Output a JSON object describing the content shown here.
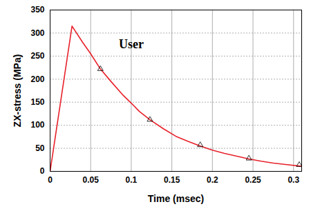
{
  "chart_data": {
    "type": "line",
    "x_label": "Time (msec)",
    "y_label": "ZX-stress (MPa)",
    "xlim": [
      0,
      0.31
    ],
    "xticks": [
      0,
      0.05,
      0.1,
      0.15,
      0.2,
      0.25,
      0.3
    ],
    "ylim": [
      0,
      350
    ],
    "yticks": [
      0,
      50,
      100,
      150,
      200,
      250,
      300,
      350
    ],
    "grid": true,
    "series": [
      {
        "type": "line",
        "color": "#e8202a",
        "line_style": "solid",
        "x": [
          0,
          0.027,
          0.04,
          0.05,
          0.062,
          0.075,
          0.09,
          0.1,
          0.11,
          0.123,
          0.14,
          0.155,
          0.17,
          0.185,
          0.2,
          0.215,
          0.23,
          0.245,
          0.26,
          0.275,
          0.29,
          0.31
        ],
        "values": [
          0,
          315,
          280,
          255,
          222,
          195,
          165,
          148,
          130,
          112,
          92,
          76,
          65,
          55,
          46,
          39,
          33,
          27,
          22,
          18,
          15,
          11
        ]
      },
      {
        "type": "scatter",
        "color": "#000000",
        "marker": "triangle",
        "x": [
          0.062,
          0.123,
          0.185,
          0.245,
          0.307
        ],
        "values": [
          222,
          112,
          57,
          28,
          14
        ]
      }
    ],
    "annotations": [
      {
        "text": "User",
        "x": 0.1,
        "y": 275
      }
    ]
  }
}
